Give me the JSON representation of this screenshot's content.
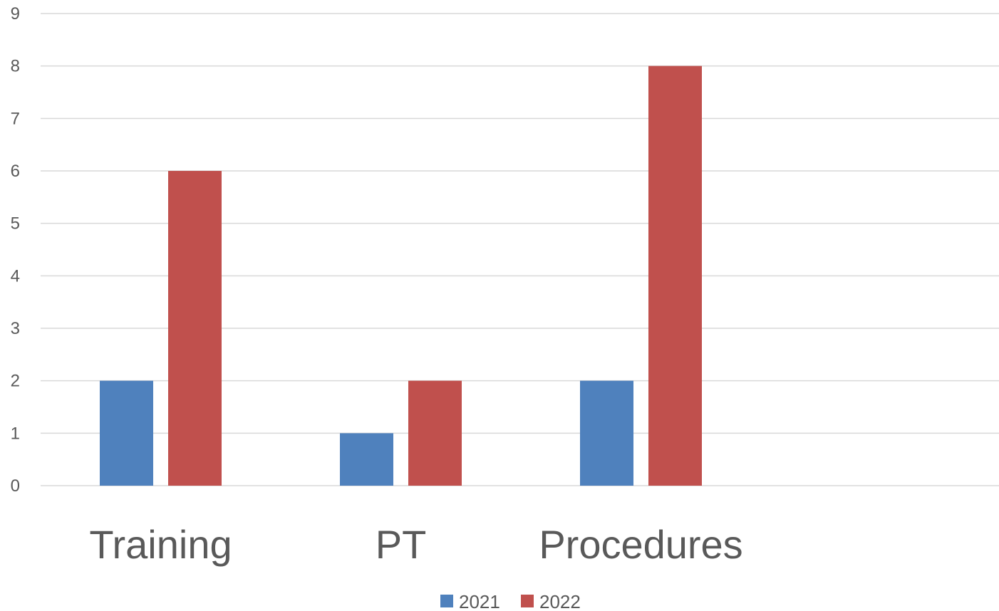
{
  "chart_data": {
    "type": "bar",
    "categories": [
      "Training",
      "PT",
      "Procedures",
      ""
    ],
    "series": [
      {
        "name": "2021",
        "values": [
          2,
          1,
          2,
          null
        ],
        "color": "#4F81BD"
      },
      {
        "name": "2022",
        "values": [
          6,
          2,
          8,
          null
        ],
        "color": "#C0504D"
      }
    ],
    "ylim": [
      0,
      9
    ],
    "yticks": [
      0,
      1,
      2,
      3,
      4,
      5,
      6,
      7,
      8,
      9
    ],
    "grid": true,
    "legend": "bottom",
    "title": "",
    "xlabel": "",
    "ylabel": ""
  }
}
